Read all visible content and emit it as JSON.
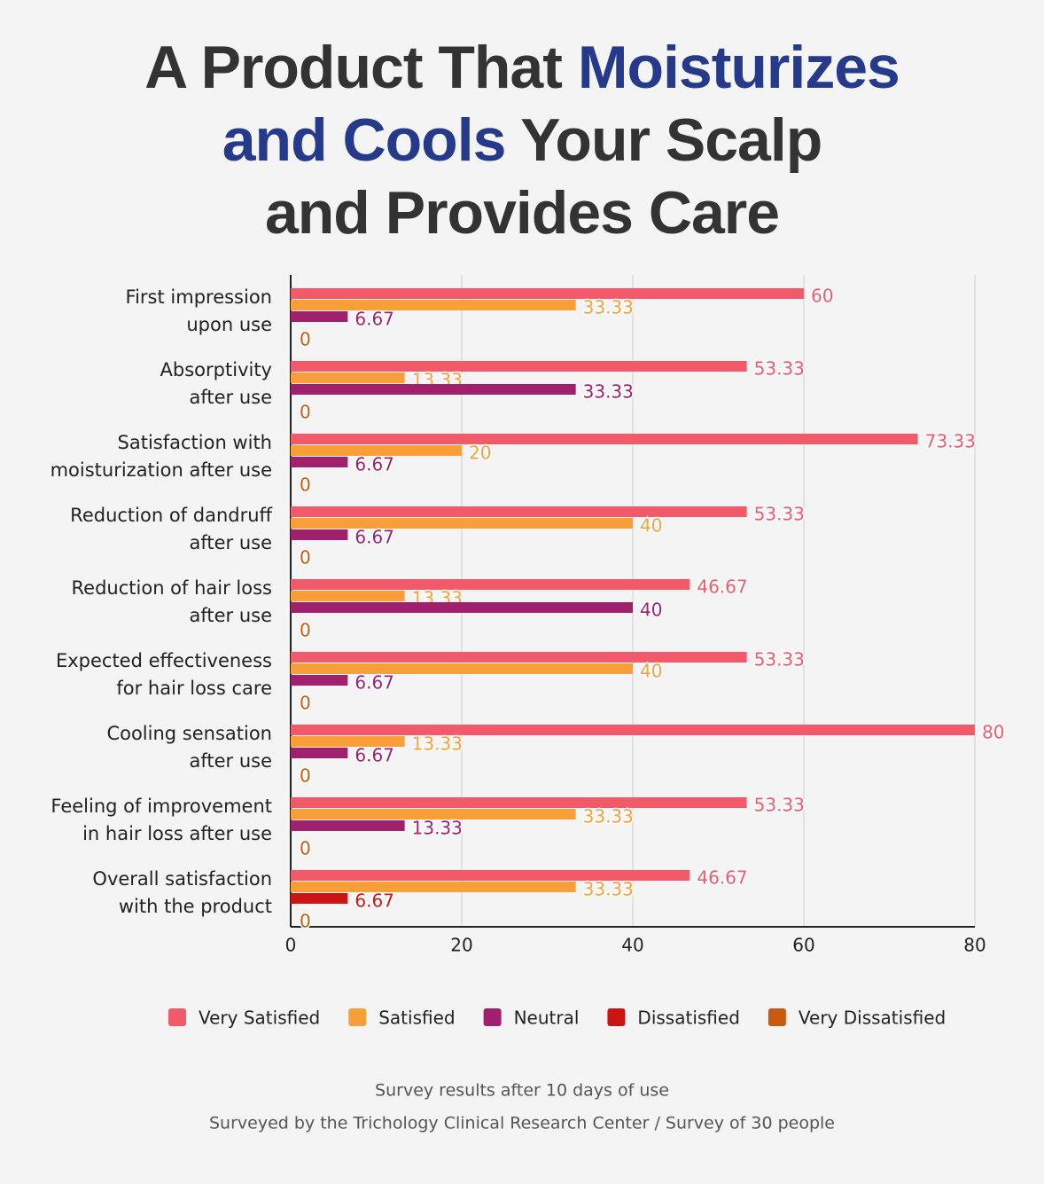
{
  "chart_data": {
    "type": "bar",
    "orientation": "horizontal",
    "title_lines": [
      [
        {
          "text": "A Product That",
          "color": "#333333"
        },
        {
          "text": "Moisturizes",
          "color": "#253a8a"
        }
      ],
      [
        {
          "text": "and Cools",
          "color": "#253a8a"
        },
        {
          "text": "Your Scalp",
          "color": "#333333"
        }
      ],
      [
        {
          "text": "and Provides Care",
          "color": "#333333"
        }
      ]
    ],
    "categories": [
      [
        "First impression",
        "upon use"
      ],
      [
        "Absorptivity",
        "after use"
      ],
      [
        "Satisfaction with",
        "moisturization after use"
      ],
      [
        "Reduction of dandruff",
        "after use"
      ],
      [
        "Reduction of hair loss",
        "after use"
      ],
      [
        "Expected effectiveness",
        "for hair loss care"
      ],
      [
        "Cooling sensation",
        "after use"
      ],
      [
        "Feeling of improvement",
        "in hair loss after use"
      ],
      [
        "Overall satisfaction",
        "with the product"
      ]
    ],
    "series": [
      {
        "name": "Very Satisfied",
        "color": "#f25a6a",
        "values": [
          60,
          53.33,
          73.33,
          53.33,
          46.67,
          53.33,
          80,
          53.33,
          46.67
        ]
      },
      {
        "name": "Satisfied",
        "color": "#f99f3a",
        "values": [
          33.33,
          13.33,
          20,
          40,
          13.33,
          40,
          13.33,
          33.33,
          33.33
        ]
      },
      {
        "name": "Neutral",
        "color": "#a0206e",
        "values": [
          6.67,
          33.33,
          6.67,
          6.67,
          40,
          6.67,
          6.67,
          13.33,
          null
        ]
      },
      {
        "name": "Dissatisfied",
        "color": "#cc1414",
        "values": [
          null,
          null,
          null,
          null,
          null,
          null,
          null,
          null,
          6.67
        ]
      },
      {
        "name": "Very Dissatisfied",
        "color": "#c85a10",
        "values": [
          0,
          0,
          0,
          0,
          0,
          0,
          0,
          0,
          0
        ]
      }
    ],
    "xlim": [
      0,
      80
    ],
    "xticks": [
      0,
      20,
      40,
      60,
      80
    ],
    "grid": true,
    "notes": [
      "Survey results after 10 days of use",
      "Surveyed by the Trichology Clinical Research Center / Survey of 30 people"
    ]
  }
}
